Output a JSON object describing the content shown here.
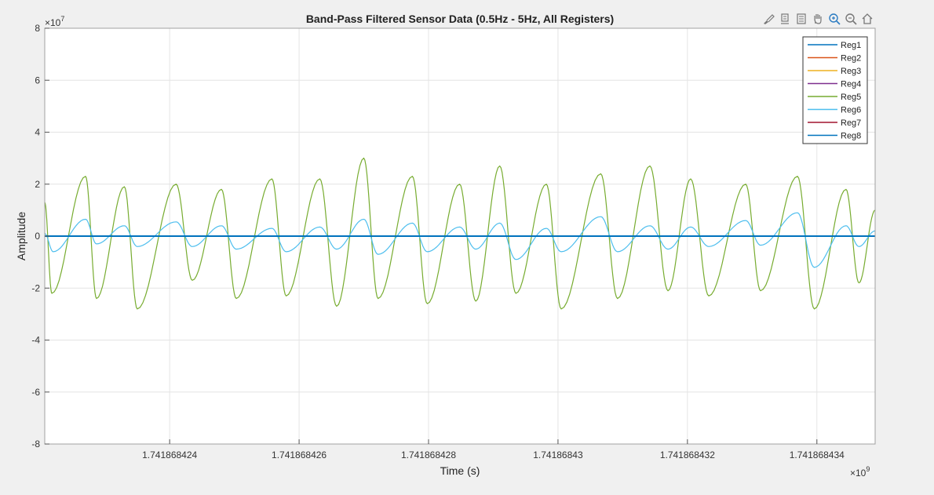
{
  "toolbar": {
    "icons": [
      "brush-icon",
      "datatip-icon",
      "legend-toggle-icon",
      "pan-icon",
      "zoom-in-icon",
      "zoom-out-icon",
      "home-icon"
    ]
  },
  "chart_data": {
    "type": "line",
    "title": "Band-Pass Filtered Sensor Data (0.5Hz - 5Hz, All Registers)",
    "xlabel": "Time (s)",
    "ylabel": "Amplitude",
    "y_exponent_label": "×10",
    "y_exponent_power": "7",
    "x_exponent_label": "×10",
    "x_exponent_power": "9",
    "xlim": [
      1741868422.07,
      1741868434.9
    ],
    "ylim": [
      -80000000,
      80000000
    ],
    "y_ticks": [
      -8,
      -6,
      -4,
      -2,
      0,
      2,
      4,
      6,
      8
    ],
    "y_tick_scale": 10000000,
    "x_ticks": [
      1741868424,
      1741868426,
      1741868428,
      1741868430,
      1741868432,
      1741868434
    ],
    "x_tick_labels": [
      "1.741868424",
      "1.741868426",
      "1.741868428",
      "1.74186843",
      "1.741868432",
      "1.741868434"
    ],
    "grid": true,
    "legend_position": "top-right",
    "series": [
      {
        "name": "Reg1",
        "color": "#0072BD"
      },
      {
        "name": "Reg2",
        "color": "#D95319"
      },
      {
        "name": "Reg3",
        "color": "#EDB120"
      },
      {
        "name": "Reg4",
        "color": "#7E2F8E"
      },
      {
        "name": "Reg5",
        "color": "#77AC30",
        "peaks": [
          [
            1741868422.07,
            13000000
          ],
          [
            1741868422.18,
            -22000000
          ],
          [
            1741868422.7,
            23000000
          ],
          [
            1741868422.87,
            -24000000
          ],
          [
            1741868423.3,
            19000000
          ],
          [
            1741868423.5,
            -28000000
          ],
          [
            1741868424.1,
            20000000
          ],
          [
            1741868424.35,
            -17000000
          ],
          [
            1741868424.8,
            18000000
          ],
          [
            1741868425.03,
            -24000000
          ],
          [
            1741868425.58,
            22000000
          ],
          [
            1741868425.8,
            -23000000
          ],
          [
            1741868426.32,
            22000000
          ],
          [
            1741868426.58,
            -27000000
          ],
          [
            1741868427.0,
            30000000
          ],
          [
            1741868427.22,
            -24000000
          ],
          [
            1741868427.75,
            23000000
          ],
          [
            1741868427.98,
            -26000000
          ],
          [
            1741868428.48,
            20000000
          ],
          [
            1741868428.73,
            -25000000
          ],
          [
            1741868429.1,
            27000000
          ],
          [
            1741868429.35,
            -22000000
          ],
          [
            1741868429.82,
            20000000
          ],
          [
            1741868430.05,
            -28000000
          ],
          [
            1741868430.66,
            24000000
          ],
          [
            1741868430.92,
            -24000000
          ],
          [
            1741868431.42,
            27000000
          ],
          [
            1741868431.7,
            -21000000
          ],
          [
            1741868432.05,
            22000000
          ],
          [
            1741868432.33,
            -23000000
          ],
          [
            1741868432.9,
            20000000
          ],
          [
            1741868433.13,
            -21000000
          ],
          [
            1741868433.7,
            23000000
          ],
          [
            1741868433.96,
            -28000000
          ],
          [
            1741868434.45,
            18000000
          ],
          [
            1741868434.65,
            -18000000
          ],
          [
            1741868434.9,
            10000000
          ]
        ]
      },
      {
        "name": "Reg6",
        "color": "#4DBEEE",
        "peaks": [
          [
            1741868422.07,
            1000000
          ],
          [
            1741868422.2,
            -6000000
          ],
          [
            1741868422.7,
            6500000
          ],
          [
            1741868422.87,
            -3000000
          ],
          [
            1741868423.3,
            4000000
          ],
          [
            1741868423.5,
            -4000000
          ],
          [
            1741868424.1,
            5500000
          ],
          [
            1741868424.35,
            -4000000
          ],
          [
            1741868424.8,
            4000000
          ],
          [
            1741868425.03,
            -5000000
          ],
          [
            1741868425.58,
            3000000
          ],
          [
            1741868425.8,
            -6000000
          ],
          [
            1741868426.32,
            3500000
          ],
          [
            1741868426.58,
            -5000000
          ],
          [
            1741868427.0,
            6500000
          ],
          [
            1741868427.22,
            -7000000
          ],
          [
            1741868427.75,
            5000000
          ],
          [
            1741868427.98,
            -6000000
          ],
          [
            1741868428.48,
            3500000
          ],
          [
            1741868428.73,
            -5000000
          ],
          [
            1741868429.1,
            5000000
          ],
          [
            1741868429.35,
            -9000000
          ],
          [
            1741868429.82,
            3000000
          ],
          [
            1741868430.05,
            -6000000
          ],
          [
            1741868430.66,
            7500000
          ],
          [
            1741868430.92,
            -6000000
          ],
          [
            1741868431.42,
            4000000
          ],
          [
            1741868431.7,
            -5000000
          ],
          [
            1741868432.05,
            3500000
          ],
          [
            1741868432.33,
            -4000000
          ],
          [
            1741868432.9,
            6000000
          ],
          [
            1741868433.13,
            -3500000
          ],
          [
            1741868433.7,
            9000000
          ],
          [
            1741868433.96,
            -12000000
          ],
          [
            1741868434.45,
            4000000
          ],
          [
            1741868434.65,
            -4000000
          ],
          [
            1741868434.9,
            2000000
          ]
        ]
      },
      {
        "name": "Reg7",
        "color": "#A2142F"
      },
      {
        "name": "Reg8",
        "color": "#0072BD"
      }
    ]
  }
}
